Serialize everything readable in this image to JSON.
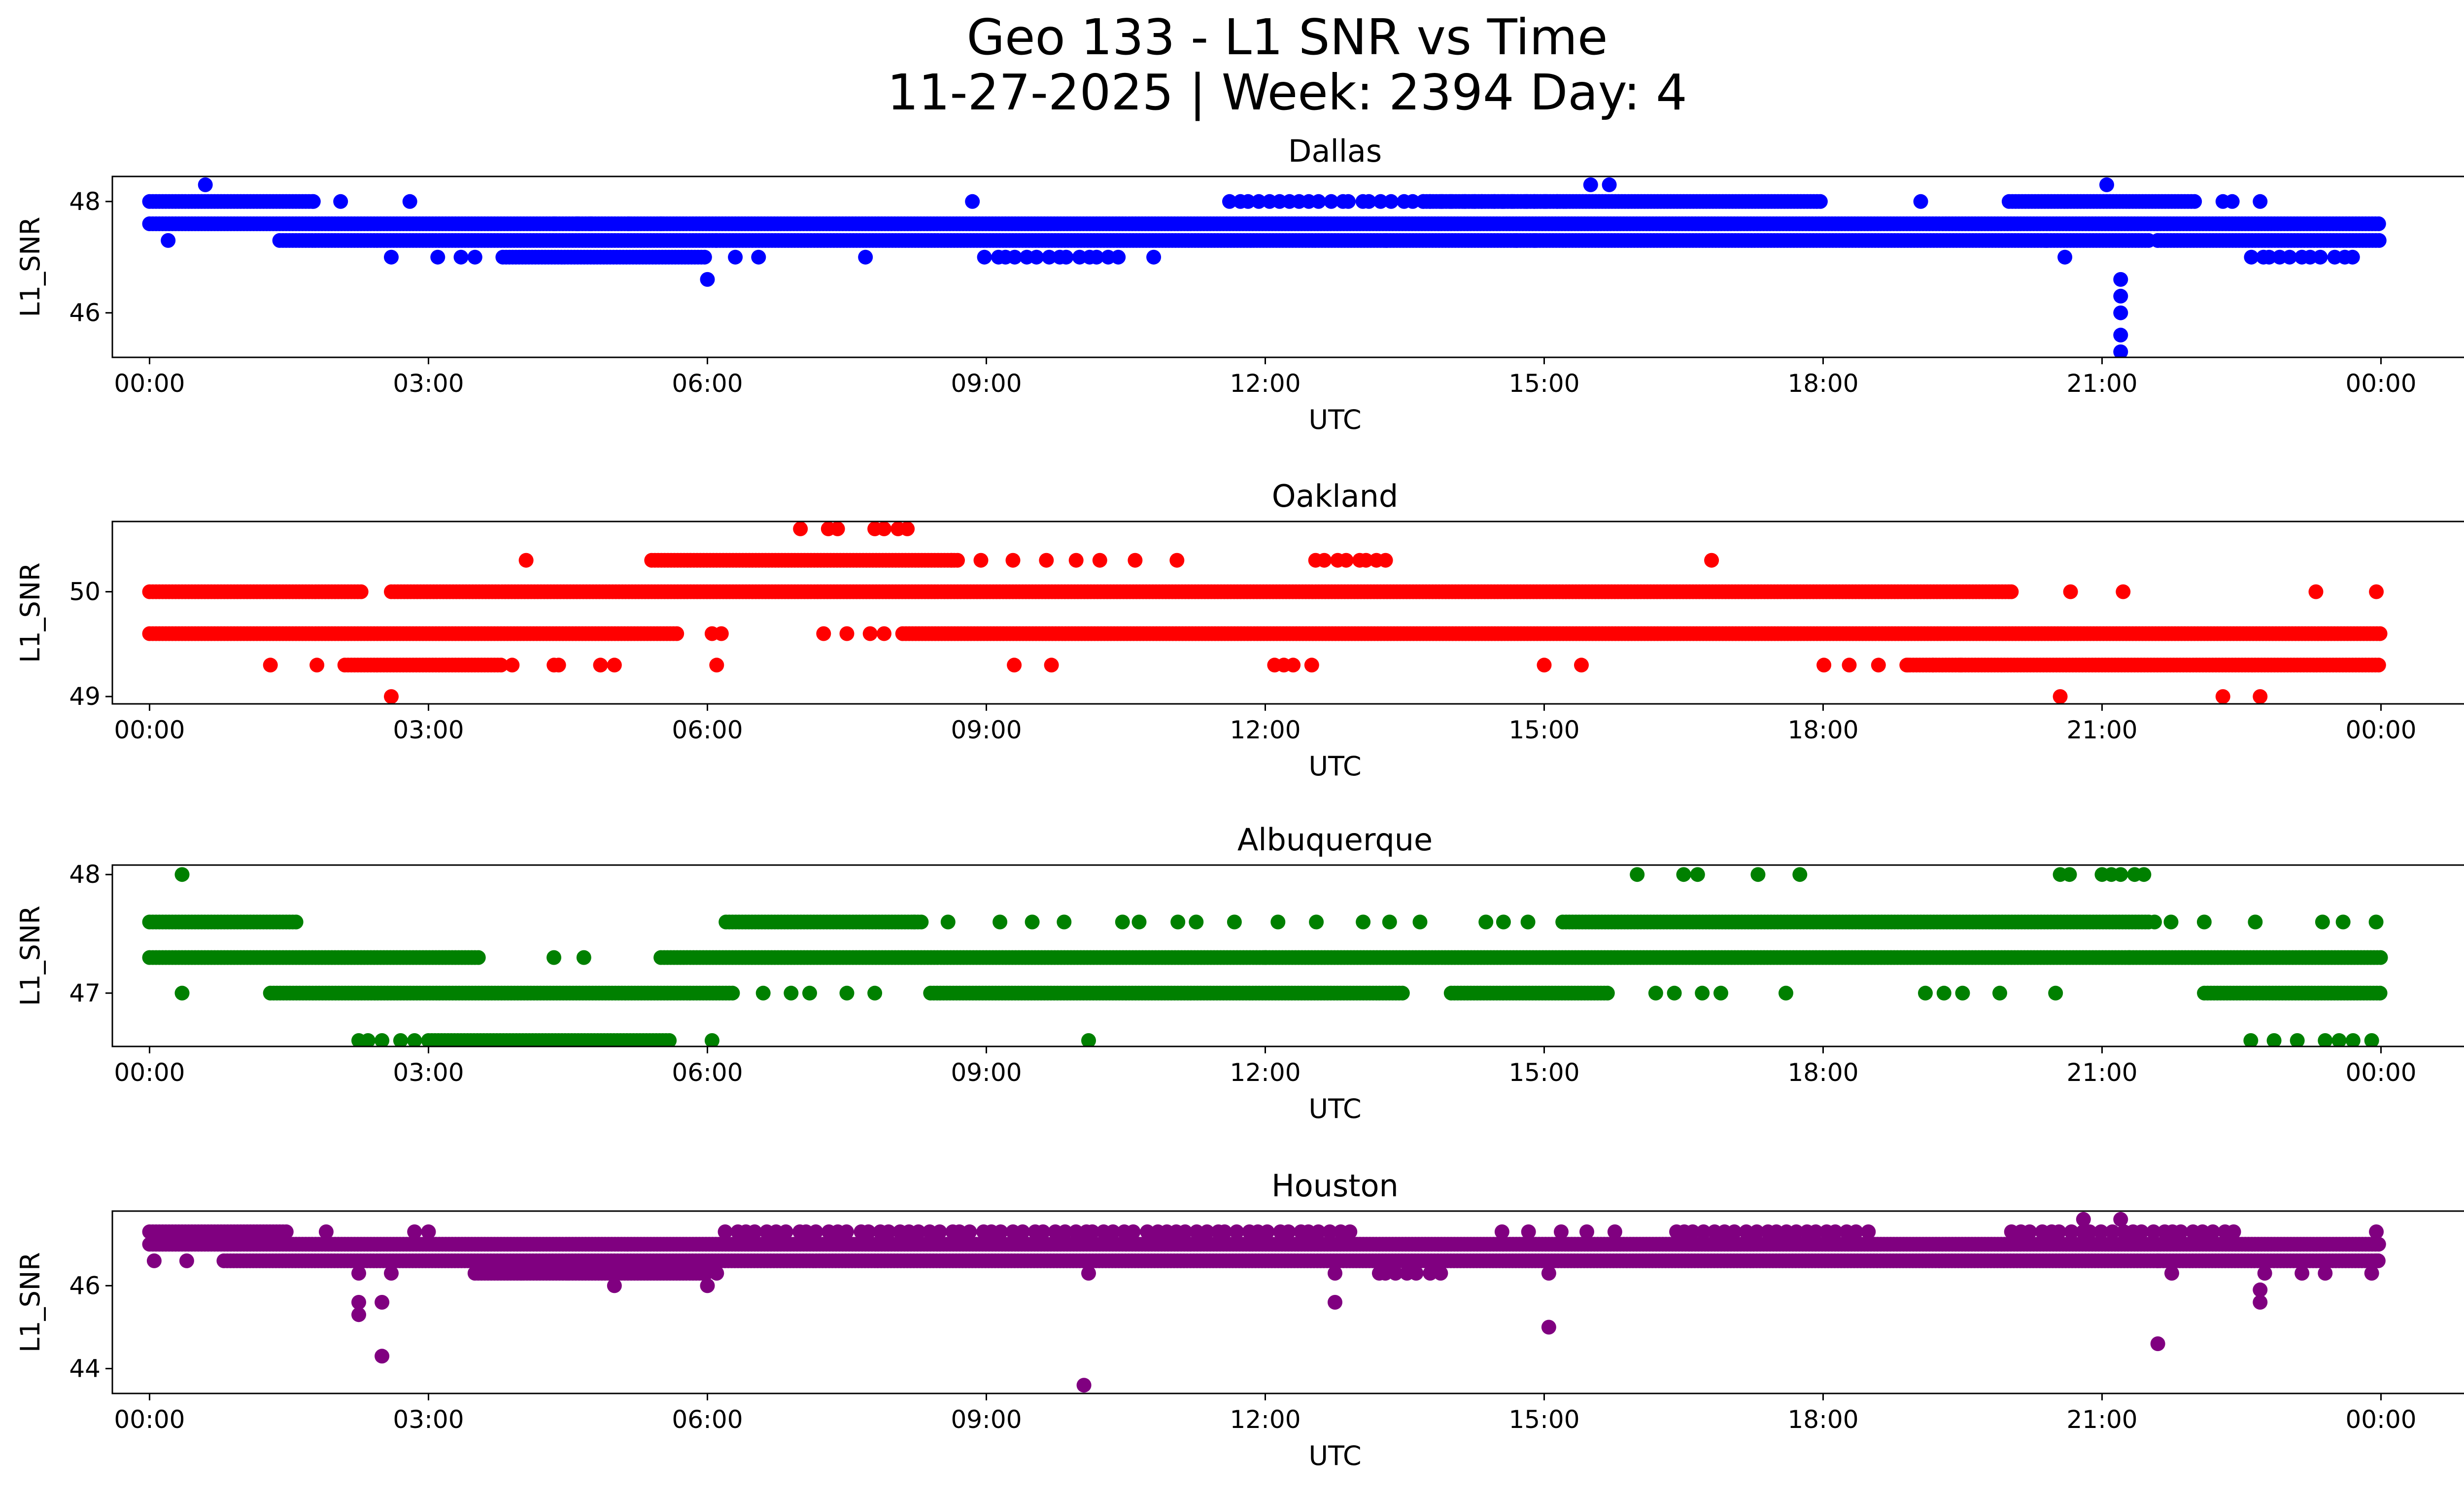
{
  "figure": {
    "title_line1": "Geo 133 - L1 SNR vs Time",
    "title_line2": "11-27-2025 | Week: 2394 Day: 4"
  },
  "chart_data": [
    {
      "type": "scatter",
      "title": "Dallas",
      "xlabel": "UTC",
      "ylabel": "L1_SNR",
      "color": "#0000ff",
      "xlim_hours": [
        -0.4,
        25.9
      ],
      "ylim": [
        45.2,
        48.45
      ],
      "x_ticks": [
        "00:00",
        "03:00",
        "06:00",
        "09:00",
        "12:00",
        "15:00",
        "18:00",
        "21:00",
        "00:00"
      ],
      "y_ticks": [
        46,
        48
      ],
      "series": [
        {
          "name": "Dallas",
          "segments": [
            {
              "y": 47.6,
              "from": 0.0,
              "to": 24.0,
              "density": "continuous"
            },
            {
              "y": 48.0,
              "from": 0.0,
              "to": 1.75,
              "density": "continuous"
            },
            {
              "y": 48.0,
              "from": 1.75,
              "to": 2.1,
              "density": "sparse"
            },
            {
              "y": 47.3,
              "from": 1.4,
              "to": 6.1,
              "density": "continuous"
            },
            {
              "y": 47.3,
              "from": 6.1,
              "to": 21.5,
              "density": "continuous"
            },
            {
              "y": 47.3,
              "from": 21.6,
              "to": 24.0,
              "density": "continuous"
            },
            {
              "y": 47.0,
              "from": 3.8,
              "to": 6.0,
              "density": "continuous"
            },
            {
              "y": 47.0,
              "from": 9.0,
              "to": 10.5,
              "density": "dense"
            },
            {
              "y": 47.0,
              "from": 22.6,
              "to": 23.8,
              "density": "dense"
            },
            {
              "y": 48.0,
              "from": 11.6,
              "to": 15.2,
              "density": "dense"
            },
            {
              "y": 48.0,
              "from": 13.7,
              "to": 18.0,
              "density": "continuous"
            },
            {
              "y": 48.0,
              "from": 20.0,
              "to": 22.0,
              "density": "continuous"
            }
          ],
          "points": [
            [
              0.2,
              47.3
            ],
            [
              0.6,
              48.3
            ],
            [
              2.6,
              47.0
            ],
            [
              2.8,
              48.0
            ],
            [
              3.1,
              47.0
            ],
            [
              3.35,
              47.0
            ],
            [
              3.5,
              47.0
            ],
            [
              4.35,
              47.6
            ],
            [
              4.6,
              47.6
            ],
            [
              4.75,
              47.6
            ],
            [
              5.15,
              47.6
            ],
            [
              5.5,
              47.6
            ],
            [
              6.0,
              46.6
            ],
            [
              6.3,
              47.0
            ],
            [
              6.55,
              47.0
            ],
            [
              7.7,
              47.0
            ],
            [
              8.85,
              48.0
            ],
            [
              10.8,
              47.0
            ],
            [
              13.3,
              47.3
            ],
            [
              14.7,
              47.3
            ],
            [
              14.9,
              47.3
            ],
            [
              15.5,
              48.3
            ],
            [
              15.7,
              48.3
            ],
            [
              19.05,
              48.0
            ],
            [
              20.4,
              47.3
            ],
            [
              20.6,
              47.0
            ],
            [
              21.05,
              48.3
            ],
            [
              21.2,
              46.6
            ],
            [
              21.2,
              46.3
            ],
            [
              21.2,
              46.0
            ],
            [
              21.2,
              45.6
            ],
            [
              21.2,
              45.3
            ],
            [
              21.6,
              47.3
            ],
            [
              22.3,
              48.0
            ],
            [
              22.4,
              48.0
            ],
            [
              22.7,
              48.0
            ]
          ]
        }
      ]
    },
    {
      "type": "scatter",
      "title": "Oakland",
      "xlabel": "UTC",
      "ylabel": "L1_SNR",
      "color": "#ff0000",
      "xlim_hours": [
        -0.4,
        25.9
      ],
      "ylim": [
        48.93,
        50.67
      ],
      "x_ticks": [
        "00:00",
        "03:00",
        "06:00",
        "09:00",
        "12:00",
        "15:00",
        "18:00",
        "21:00",
        "00:00"
      ],
      "y_ticks": [
        49,
        50
      ],
      "series": [
        {
          "name": "Oakland",
          "segments": [
            {
              "y": 50.0,
              "from": 0.0,
              "to": 2.3,
              "density": "continuous"
            },
            {
              "y": 50.0,
              "from": 2.6,
              "to": 20.0,
              "density": "continuous"
            },
            {
              "y": 50.0,
              "from": 20.0,
              "to": 21.4,
              "density": "sparse"
            },
            {
              "y": 49.6,
              "from": 0.0,
              "to": 5.7,
              "density": "continuous"
            },
            {
              "y": 49.6,
              "from": 8.1,
              "to": 24.0,
              "density": "continuous"
            },
            {
              "y": 49.3,
              "from": 2.1,
              "to": 3.8,
              "density": "continuous"
            },
            {
              "y": 49.3,
              "from": 18.0,
              "to": 20.0,
              "density": "sparse"
            },
            {
              "y": 49.3,
              "from": 18.9,
              "to": 24.0,
              "density": "continuous"
            },
            {
              "y": 50.3,
              "from": 5.4,
              "to": 8.7,
              "density": "continuous"
            },
            {
              "y": 50.3,
              "from": 8.7,
              "to": 10.3,
              "density": "sparse"
            },
            {
              "y": 50.3,
              "from": 12.55,
              "to": 13.4,
              "density": "dense"
            }
          ],
          "points": [
            [
              1.3,
              49.3
            ],
            [
              1.8,
              49.3
            ],
            [
              2.6,
              49.0
            ],
            [
              3.9,
              49.3
            ],
            [
              4.05,
              50.3
            ],
            [
              4.35,
              49.3
            ],
            [
              4.4,
              49.3
            ],
            [
              4.85,
              49.3
            ],
            [
              5.0,
              49.3
            ],
            [
              6.05,
              49.6
            ],
            [
              6.1,
              49.3
            ],
            [
              6.15,
              49.6
            ],
            [
              7.0,
              50.6
            ],
            [
              7.3,
              50.6
            ],
            [
              7.4,
              50.6
            ],
            [
              7.8,
              50.6
            ],
            [
              7.9,
              50.6
            ],
            [
              8.05,
              50.6
            ],
            [
              8.15,
              50.6
            ],
            [
              7.25,
              49.6
            ],
            [
              7.5,
              49.6
            ],
            [
              7.75,
              49.6
            ],
            [
              7.9,
              49.6
            ],
            [
              9.3,
              49.3
            ],
            [
              9.7,
              49.3
            ],
            [
              10.6,
              50.3
            ],
            [
              11.05,
              50.3
            ],
            [
              12.1,
              49.3
            ],
            [
              12.2,
              49.3
            ],
            [
              12.3,
              49.3
            ],
            [
              12.5,
              49.3
            ],
            [
              15.0,
              49.3
            ],
            [
              15.4,
              49.3
            ],
            [
              16.8,
              50.3
            ],
            [
              20.55,
              49.0
            ],
            [
              22.3,
              49.0
            ],
            [
              22.7,
              49.0
            ],
            [
              23.3,
              50.0
            ],
            [
              23.95,
              50.0
            ]
          ]
        }
      ]
    },
    {
      "type": "scatter",
      "title": "Albuquerque",
      "xlabel": "UTC",
      "ylabel": "L1_SNR",
      "color": "#008000",
      "xlim_hours": [
        -0.4,
        25.9
      ],
      "ylim": [
        46.55,
        48.08
      ],
      "x_ticks": [
        "00:00",
        "03:00",
        "06:00",
        "09:00",
        "12:00",
        "15:00",
        "18:00",
        "21:00",
        "00:00"
      ],
      "y_ticks": [
        47,
        48
      ],
      "series": [
        {
          "name": "Albuquerque",
          "segments": [
            {
              "y": 47.3,
              "from": 0.0,
              "to": 3.5,
              "density": "continuous"
            },
            {
              "y": 47.3,
              "from": 3.5,
              "to": 5.2,
              "density": "sparse"
            },
            {
              "y": 47.3,
              "from": 5.5,
              "to": 21.3,
              "density": "continuous"
            },
            {
              "y": 47.3,
              "from": 21.3,
              "to": 24.0,
              "density": "continuous"
            },
            {
              "y": 47.6,
              "from": 0.0,
              "to": 1.6,
              "density": "continuous"
            },
            {
              "y": 47.6,
              "from": 6.2,
              "to": 8.3,
              "density": "continuous"
            },
            {
              "y": 47.6,
              "from": 8.3,
              "to": 15.0,
              "density": "sparse"
            },
            {
              "y": 47.6,
              "from": 15.2,
              "to": 21.5,
              "density": "continuous"
            },
            {
              "y": 47.6,
              "from": 21.5,
              "to": 24.0,
              "density": "sparse"
            },
            {
              "y": 47.0,
              "from": 1.3,
              "to": 6.3,
              "density": "continuous"
            },
            {
              "y": 47.0,
              "from": 8.4,
              "to": 13.5,
              "density": "continuous"
            },
            {
              "y": 47.0,
              "from": 14.0,
              "to": 15.7,
              "density": "continuous"
            },
            {
              "y": 47.0,
              "from": 22.1,
              "to": 24.0,
              "density": "continuous"
            },
            {
              "y": 46.6,
              "from": 3.0,
              "to": 5.6,
              "density": "continuous"
            }
          ],
          "points": [
            [
              0.35,
              48.0
            ],
            [
              0.35,
              47.0
            ],
            [
              2.25,
              46.6
            ],
            [
              2.35,
              46.6
            ],
            [
              2.5,
              46.6
            ],
            [
              2.7,
              46.6
            ],
            [
              2.85,
              46.6
            ],
            [
              6.05,
              46.6
            ],
            [
              6.6,
              47.0
            ],
            [
              6.9,
              47.0
            ],
            [
              7.1,
              47.0
            ],
            [
              7.5,
              47.0
            ],
            [
              7.8,
              47.0
            ],
            [
              10.1,
              46.6
            ],
            [
              12.0,
              47.3
            ],
            [
              16.0,
              48.0
            ],
            [
              16.5,
              48.0
            ],
            [
              16.65,
              48.0
            ],
            [
              17.3,
              48.0
            ],
            [
              17.75,
              48.0
            ],
            [
              16.2,
              47.0
            ],
            [
              16.4,
              47.0
            ],
            [
              16.7,
              47.0
            ],
            [
              16.9,
              47.0
            ],
            [
              17.6,
              47.0
            ],
            [
              19.1,
              47.0
            ],
            [
              19.3,
              47.0
            ],
            [
              19.5,
              47.0
            ],
            [
              19.9,
              47.0
            ],
            [
              20.5,
              47.0
            ],
            [
              20.55,
              48.0
            ],
            [
              20.65,
              48.0
            ],
            [
              21.0,
              48.0
            ],
            [
              21.1,
              48.0
            ],
            [
              21.2,
              48.0
            ],
            [
              21.35,
              48.0
            ],
            [
              21.45,
              48.0
            ],
            [
              22.6,
              46.6
            ],
            [
              22.85,
              46.6
            ],
            [
              23.1,
              46.6
            ],
            [
              23.4,
              46.6
            ],
            [
              23.55,
              46.6
            ],
            [
              23.7,
              46.6
            ],
            [
              23.9,
              46.6
            ]
          ]
        }
      ]
    },
    {
      "type": "scatter",
      "title": "Houston",
      "xlabel": "UTC",
      "ylabel": "L1_SNR",
      "color": "#800080",
      "xlim_hours": [
        -0.4,
        25.9
      ],
      "ylim": [
        43.4,
        47.8
      ],
      "x_ticks": [
        "00:00",
        "03:00",
        "06:00",
        "09:00",
        "12:00",
        "15:00",
        "18:00",
        "21:00",
        "00:00"
      ],
      "y_ticks": [
        44,
        46
      ],
      "series": [
        {
          "name": "Houston",
          "segments": [
            {
              "y": 47.0,
              "from": 0.0,
              "to": 24.0,
              "density": "continuous"
            },
            {
              "y": 46.6,
              "from": 0.8,
              "to": 24.0,
              "density": "continuous"
            },
            {
              "y": 47.3,
              "from": 0.0,
              "to": 1.5,
              "density": "continuous"
            },
            {
              "y": 47.3,
              "from": 6.2,
              "to": 13.0,
              "density": "dense"
            },
            {
              "y": 47.3,
              "from": 16.5,
              "to": 18.5,
              "density": "dense"
            },
            {
              "y": 47.3,
              "from": 14.0,
              "to": 16.5,
              "density": "sparse"
            },
            {
              "y": 47.3,
              "from": 20.0,
              "to": 22.5,
              "density": "dense"
            },
            {
              "y": 46.3,
              "from": 3.5,
              "to": 6.0,
              "density": "continuous"
            },
            {
              "y": 46.3,
              "from": 13.2,
              "to": 13.9,
              "density": "dense"
            }
          ],
          "points": [
            [
              0.05,
              46.6
            ],
            [
              0.4,
              46.6
            ],
            [
              1.9,
              47.3
            ],
            [
              2.25,
              46.3
            ],
            [
              2.25,
              45.6
            ],
            [
              2.25,
              45.3
            ],
            [
              2.5,
              45.6
            ],
            [
              2.5,
              44.3
            ],
            [
              2.6,
              46.3
            ],
            [
              2.85,
              47.3
            ],
            [
              3.0,
              47.3
            ],
            [
              4.0,
              46.3
            ],
            [
              4.5,
              46.3
            ],
            [
              5.0,
              46.0
            ],
            [
              6.0,
              46.0
            ],
            [
              6.1,
              46.3
            ],
            [
              10.1,
              46.3
            ],
            [
              10.05,
              43.6
            ],
            [
              12.75,
              46.3
            ],
            [
              12.75,
              45.6
            ],
            [
              15.05,
              46.3
            ],
            [
              15.05,
              45.0
            ],
            [
              20.8,
              47.6
            ],
            [
              21.2,
              47.6
            ],
            [
              21.6,
              46.6
            ],
            [
              21.6,
              44.6
            ],
            [
              21.75,
              46.3
            ],
            [
              22.75,
              46.3
            ],
            [
              22.7,
              45.6
            ],
            [
              22.7,
              45.9
            ],
            [
              23.15,
              46.3
            ],
            [
              23.4,
              46.3
            ],
            [
              23.9,
              46.3
            ],
            [
              23.95,
              47.3
            ],
            [
              23.95,
              46.6
            ]
          ]
        }
      ]
    }
  ]
}
